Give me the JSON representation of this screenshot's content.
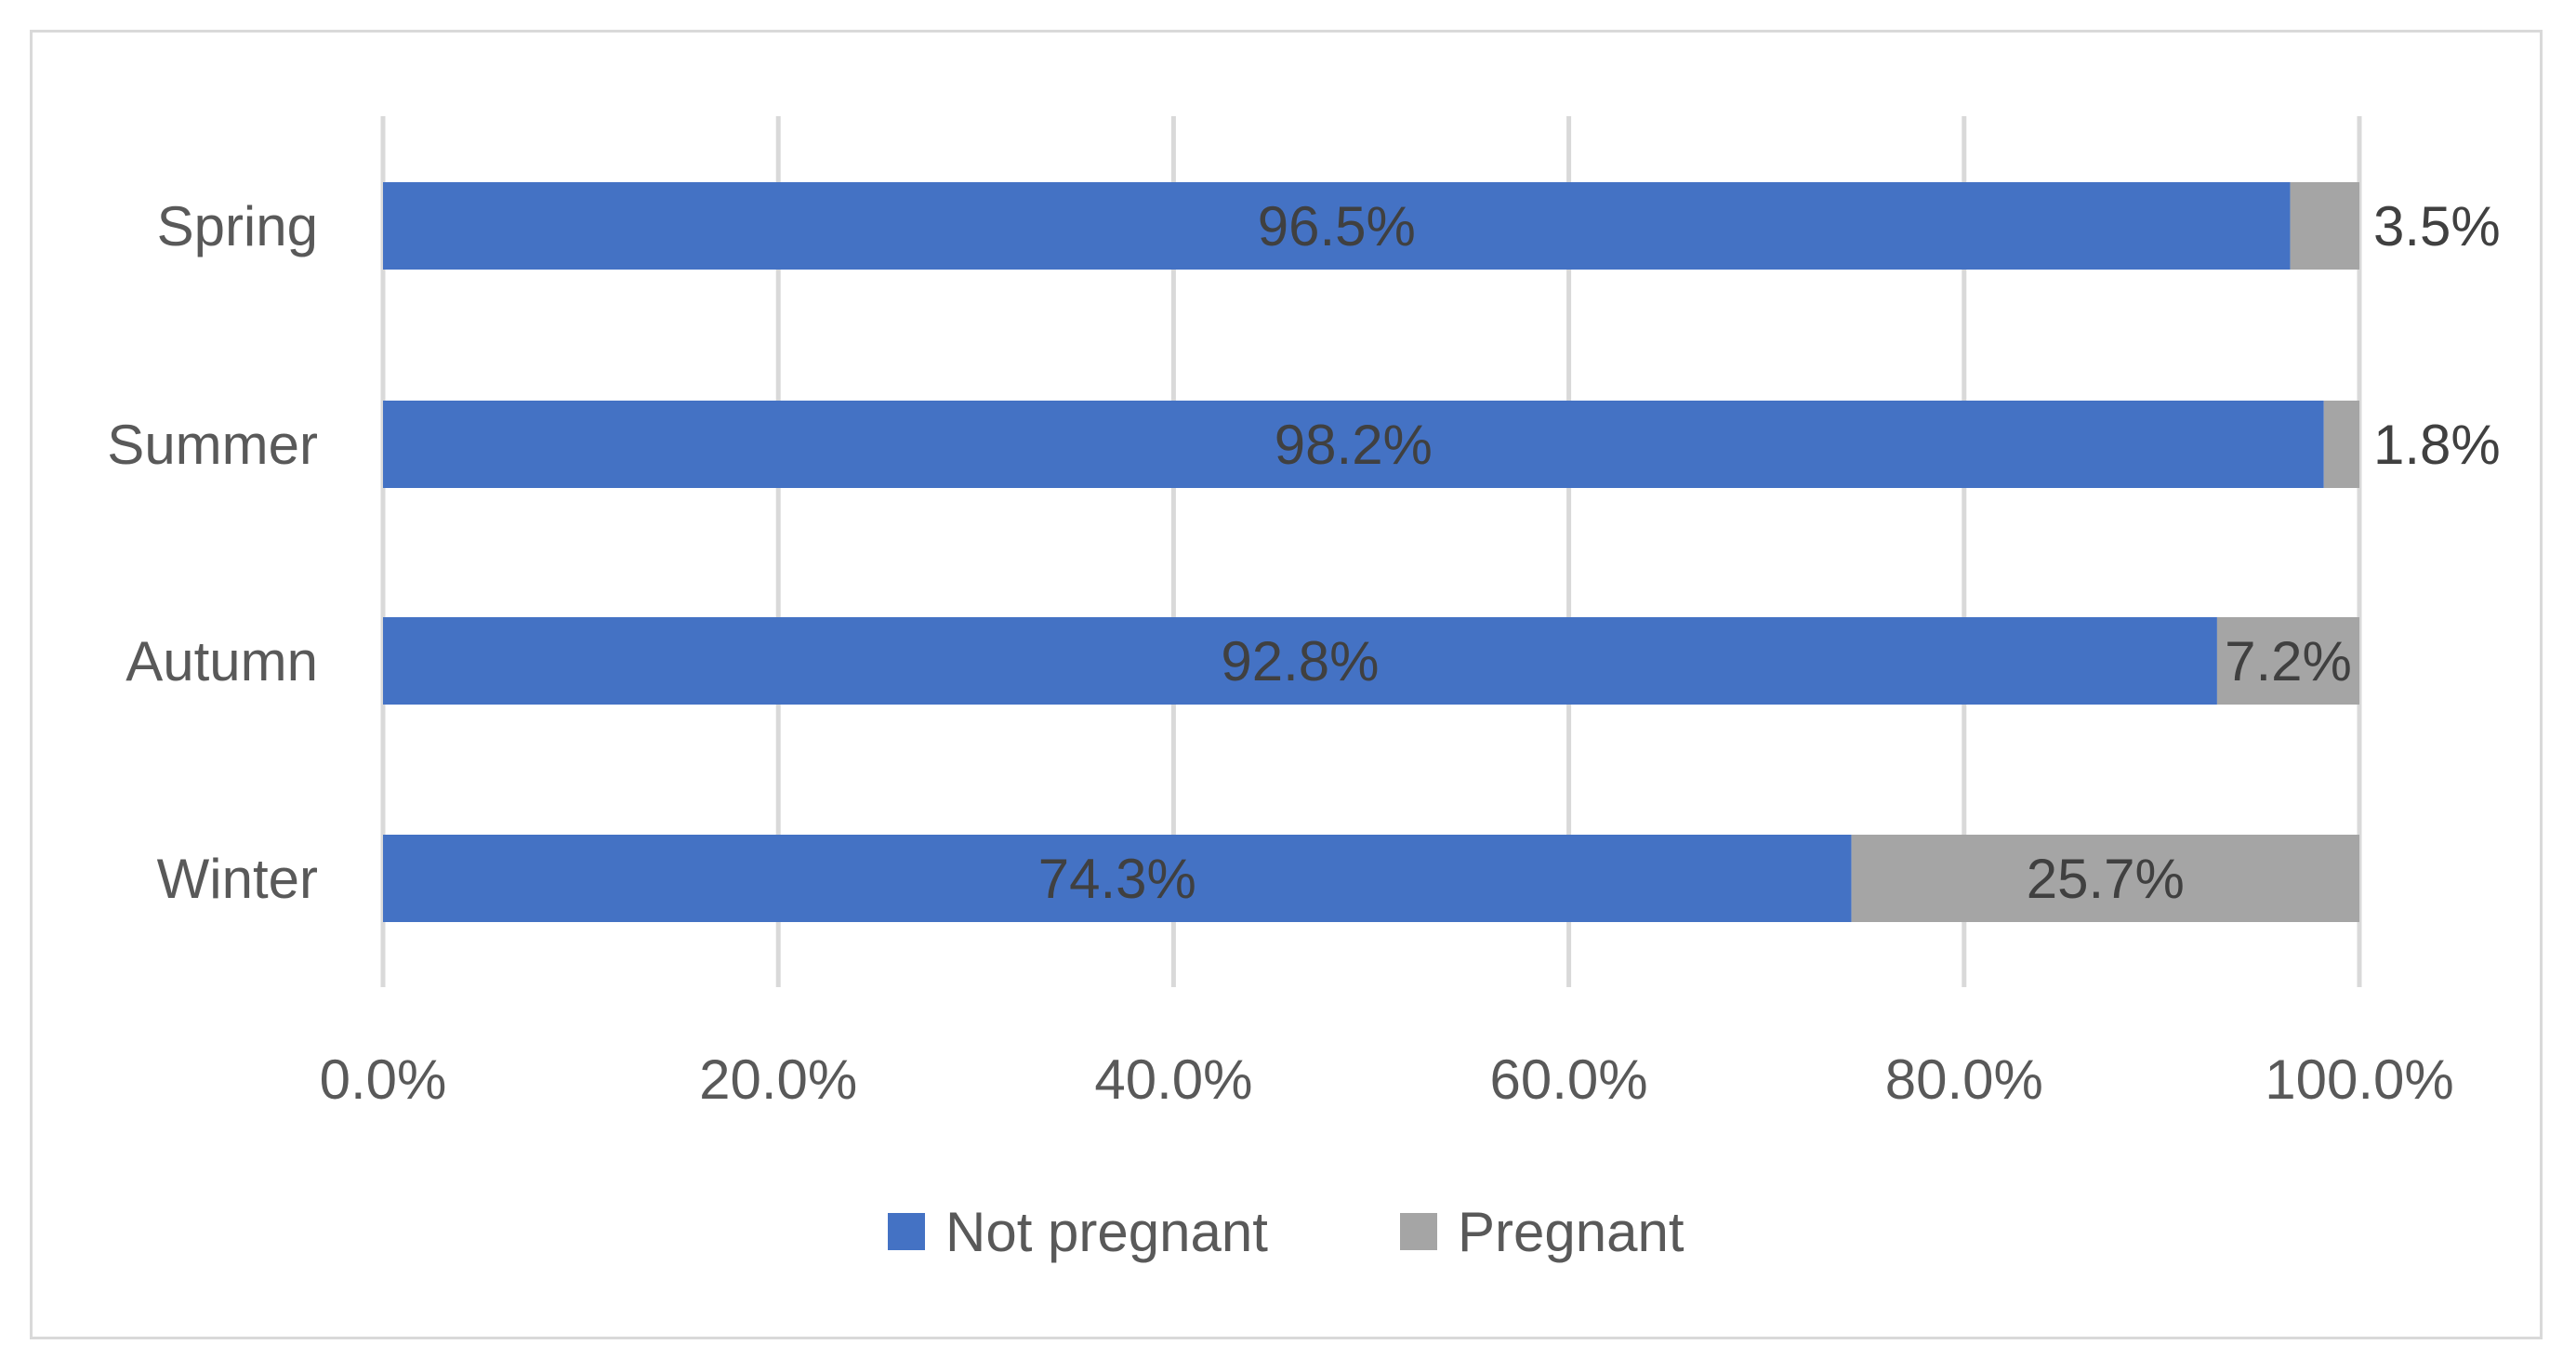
{
  "chart_data": {
    "type": "bar",
    "orientation": "horizontal",
    "stacked": true,
    "categories": [
      "Spring",
      "Summer",
      "Autumn",
      "Winter"
    ],
    "series": [
      {
        "name": "Not pregnant",
        "values": [
          96.5,
          98.2,
          92.8,
          74.3
        ],
        "labels": [
          "96.5%",
          "98.2%",
          "92.8%",
          "74.3%"
        ]
      },
      {
        "name": "Pregnant",
        "values": [
          3.5,
          1.8,
          7.2,
          25.7
        ],
        "labels": [
          "3.5%",
          "1.8%",
          "7.2%",
          "25.7%"
        ]
      }
    ],
    "title": "",
    "xlabel": "",
    "ylabel": "",
    "xlim": [
      0,
      100
    ],
    "x_ticks": [
      "0.0%",
      "20.0%",
      "40.0%",
      "60.0%",
      "80.0%",
      "100.0%"
    ],
    "grid": true,
    "legend_position": "bottom",
    "colors": {
      "Not pregnant": "#4472c4",
      "Pregnant": "#a5a5a5",
      "gridline": "#d9d9d9",
      "frame": "#d9d9d9"
    }
  }
}
